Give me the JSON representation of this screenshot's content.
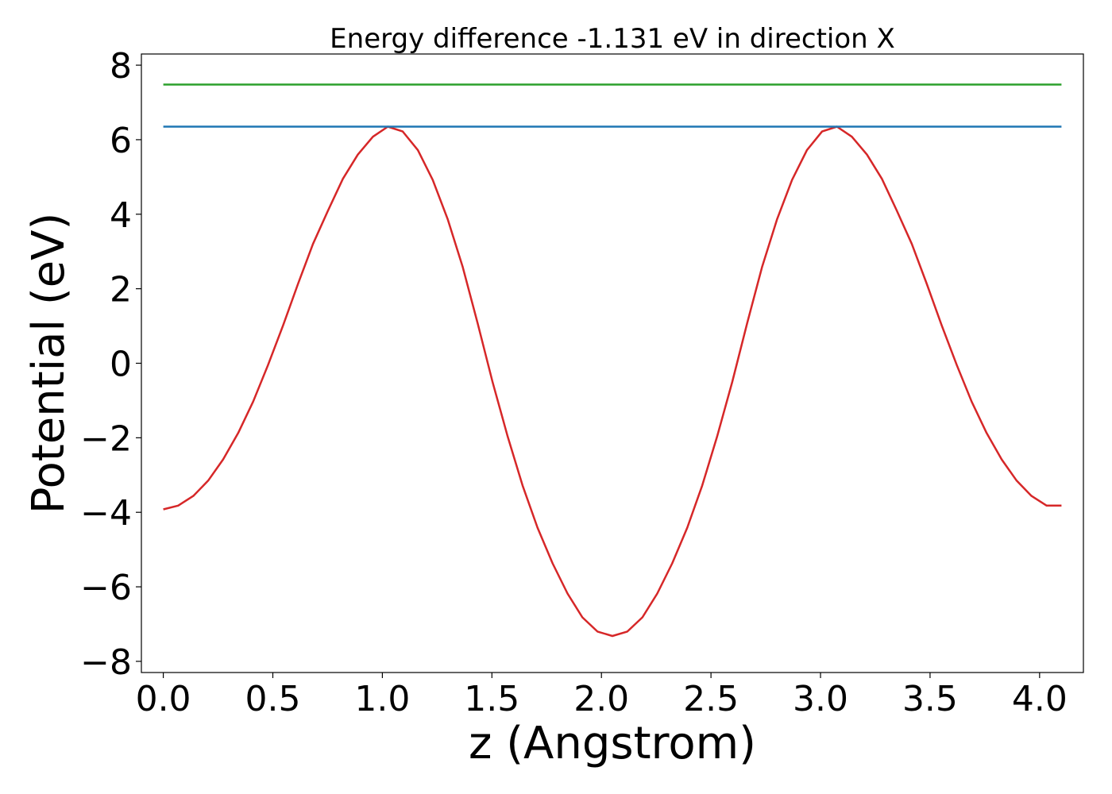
{
  "chart_data": {
    "type": "line",
    "title": "Energy difference -1.131 eV in direction X",
    "xlabel": "z (Angstrom)",
    "ylabel": "Potential (eV)",
    "xlim": [
      -0.1,
      4.2
    ],
    "ylim": [
      -8.3,
      8.3
    ],
    "xticks": [
      0.0,
      0.5,
      1.0,
      1.5,
      2.0,
      2.5,
      3.0,
      3.5,
      4.0
    ],
    "xtick_labels": [
      "0.0",
      "0.5",
      "1.0",
      "1.5",
      "2.0",
      "2.5",
      "3.0",
      "3.5",
      "4.0"
    ],
    "yticks": [
      -8,
      -6,
      -4,
      -2,
      0,
      2,
      4,
      6,
      8
    ],
    "ytick_labels": [
      "−8",
      "−6",
      "−4",
      "−2",
      "0",
      "2",
      "4",
      "6",
      "8"
    ],
    "grid": false,
    "series": [
      {
        "color": "#d62728",
        "x": [
          0.0,
          0.068,
          0.137,
          0.205,
          0.273,
          0.342,
          0.41,
          0.478,
          0.547,
          0.615,
          0.683,
          0.752,
          0.82,
          0.888,
          0.957,
          1.025,
          1.093,
          1.162,
          1.23,
          1.298,
          1.367,
          1.435,
          1.503,
          1.572,
          1.64,
          1.708,
          1.777,
          1.845,
          1.913,
          1.982,
          2.05,
          2.118,
          2.187,
          2.255,
          2.323,
          2.392,
          2.46,
          2.528,
          2.597,
          2.665,
          2.733,
          2.802,
          2.87,
          2.938,
          3.007,
          3.075,
          3.143,
          3.212,
          3.28,
          3.348,
          3.417,
          3.485,
          3.553,
          3.622,
          3.69,
          3.758,
          3.827,
          3.895,
          3.963,
          4.032,
          4.1
        ],
        "y": [
          -3.92,
          -3.82,
          -3.56,
          -3.15,
          -2.58,
          -1.87,
          -1.03,
          -0.05,
          1.02,
          2.13,
          3.2,
          4.1,
          4.95,
          5.6,
          6.08,
          6.35,
          6.22,
          5.72,
          4.92,
          3.87,
          2.58,
          1.07,
          -0.5,
          -1.97,
          -3.28,
          -4.41,
          -5.37,
          -6.18,
          -6.82,
          -7.2,
          -7.32,
          -7.2,
          -6.82,
          -6.18,
          -5.37,
          -4.41,
          -3.28,
          -1.97,
          -0.5,
          1.07,
          2.58,
          3.87,
          4.92,
          5.72,
          6.22,
          6.35,
          6.08,
          5.6,
          4.95,
          4.1,
          3.2,
          2.13,
          1.02,
          -0.05,
          -1.03,
          -1.87,
          -2.58,
          -3.15,
          -3.56,
          -3.82,
          -3.82
        ]
      },
      {
        "color": "#1f77b4",
        "x": [
          0.0,
          4.1
        ],
        "y": [
          6.35,
          6.35
        ]
      },
      {
        "color": "#2ca02c",
        "x": [
          0.0,
          4.1
        ],
        "y": [
          7.48,
          7.48
        ]
      }
    ]
  }
}
